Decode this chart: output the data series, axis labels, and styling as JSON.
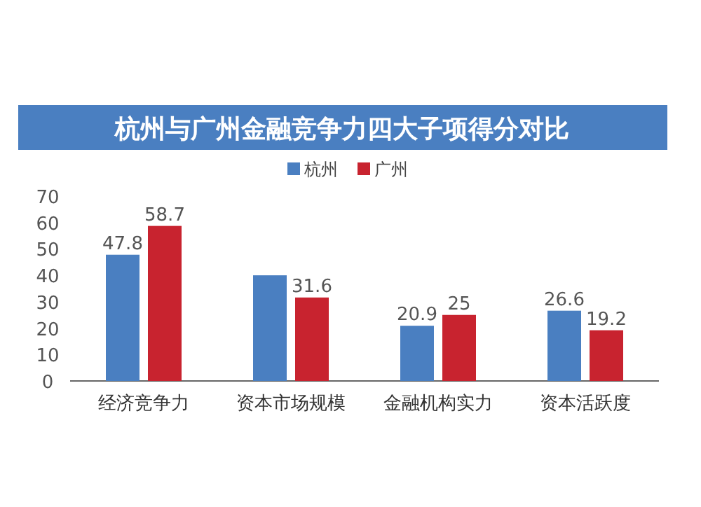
{
  "chart_data": {
    "type": "bar",
    "title": "杭州与广州金融竞争力四大子项得分对比",
    "categories": [
      "经济竞争力",
      "资本市场规模",
      "金融机构实力",
      "资本活跃度"
    ],
    "series": [
      {
        "name": "杭州",
        "color": "#4a7fc1",
        "values": [
          47.8,
          40,
          20.9,
          26.6
        ],
        "value_labels": [
          "47.8",
          null,
          "20.9",
          "26.6"
        ]
      },
      {
        "name": "广州",
        "color": "#c8232f",
        "values": [
          58.7,
          31.6,
          25,
          19.2
        ],
        "value_labels": [
          "58.7",
          "31.6",
          "25",
          "19.2"
        ]
      }
    ],
    "ylim": [
      0,
      70
    ],
    "yticks": [
      0,
      10,
      20,
      30,
      40,
      50,
      60,
      70
    ],
    "grid": false,
    "legend": "top"
  }
}
